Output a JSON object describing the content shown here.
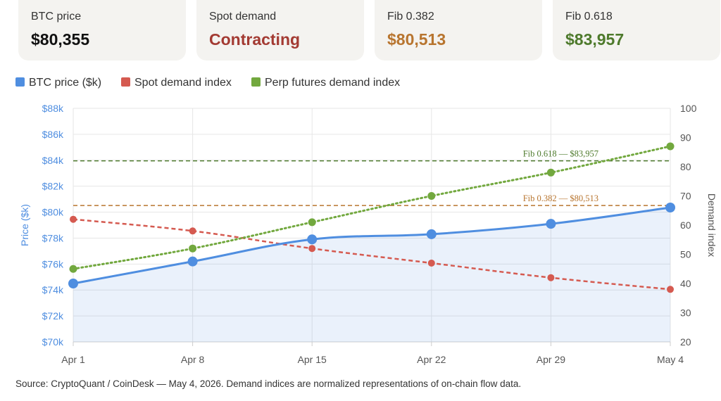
{
  "cards": [
    {
      "label": "BTC price",
      "value": "$80,355",
      "color": "#111111"
    },
    {
      "label": "Spot demand",
      "value": "Contracting",
      "color": "#a33a32"
    },
    {
      "label": "Fib 0.382",
      "value": "$80,513",
      "color": "#b8752f"
    },
    {
      "label": "Fib 0.618",
      "value": "$83,957",
      "color": "#4e7a2c"
    }
  ],
  "legend": [
    {
      "label": "BTC price ($k)",
      "color": "#4f8ee0"
    },
    {
      "label": "Spot demand index",
      "color": "#d55a50"
    },
    {
      "label": "Perp futures demand index",
      "color": "#72a83e"
    }
  ],
  "chart_data": {
    "type": "line",
    "categories": [
      "Apr 1",
      "Apr 8",
      "Apr 15",
      "Apr 22",
      "Apr 29",
      "May 4"
    ],
    "y_left": {
      "label": "Price ($k)",
      "range": [
        70,
        88
      ],
      "ticks": [
        "$70k",
        "$72k",
        "$74k",
        "$76k",
        "$78k",
        "$80k",
        "$82k",
        "$84k",
        "$86k",
        "$88k"
      ],
      "color": "#4f8ee0"
    },
    "y_right": {
      "label": "Demand index",
      "range": [
        20,
        100
      ],
      "ticks": [
        "20",
        "30",
        "40",
        "50",
        "60",
        "70",
        "80",
        "90",
        "100"
      ]
    },
    "series": [
      {
        "name": "BTC price ($k)",
        "axis": "left",
        "color": "#4f8ee0",
        "style": "solid-area",
        "values": [
          74.5,
          76.2,
          77.9,
          78.3,
          79.1,
          80.355
        ]
      },
      {
        "name": "Spot demand index",
        "axis": "right",
        "color": "#d55a50",
        "style": "dashed",
        "values": [
          62,
          58,
          52,
          47,
          42,
          38
        ]
      },
      {
        "name": "Perp futures demand index",
        "axis": "right",
        "color": "#72a83e",
        "style": "dotted",
        "values": [
          45,
          52,
          61,
          70,
          78,
          87
        ]
      }
    ],
    "reference_lines": [
      {
        "label": "Fib 0.618 — $83,957",
        "value": 83.957,
        "color": "#4e7a2c"
      },
      {
        "label": "Fib 0.382 — $80,513",
        "value": 80.513,
        "color": "#b8752f"
      }
    ],
    "grid": true
  },
  "source": "Source: CryptoQuant / CoinDesk — May 4, 2026. Demand indices are normalized representations of on-chain flow data."
}
